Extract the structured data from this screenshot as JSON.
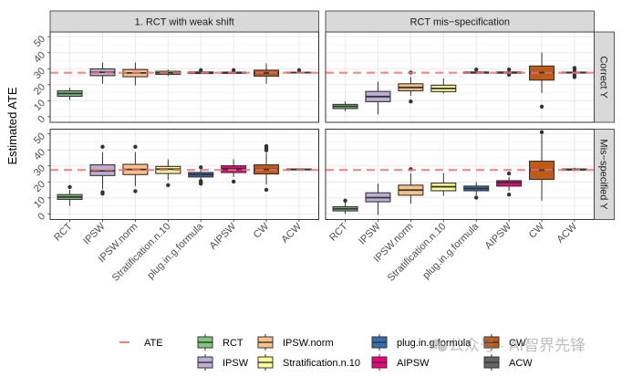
{
  "chart_data": {
    "type": "boxplot",
    "title": "",
    "xlabel": "",
    "ylabel": "Estimated ATE",
    "ylim": [
      -3.5,
      53
    ],
    "yticks": [
      0,
      10,
      20,
      30,
      40,
      50
    ],
    "ytick_labels": [
      "0",
      "10",
      "20",
      "30",
      "40",
      "50"
    ],
    "grid": true,
    "categories": [
      "RCT",
      "IPSW",
      "IPSW.norm",
      "Stratification.n.10",
      "plug.in.g.formula",
      "AIPSW",
      "CW",
      "ACW"
    ],
    "facet_columns": [
      "1. RCT with weak shift",
      "RCT mis−specification"
    ],
    "facet_rows": [
      "Correct Y",
      "Mis−specified Y"
    ],
    "reference_line": {
      "name": "ATE",
      "value": 27.5,
      "color": "#F07470",
      "style": "dashed"
    },
    "colors": {
      "RCT": "#7FC97F",
      "IPSW": "#BEAED4",
      "IPSW.norm": "#FDC086",
      "Stratification.n.10": "#FFFF99",
      "plug.in.g.formula": "#386CB0",
      "AIPSW": "#F0027F",
      "CW": "#BF5B17",
      "ACW": "#666666"
    },
    "legend": {
      "position": "bottom",
      "line_item": {
        "label": "ATE"
      },
      "items": [
        "RCT",
        "IPSW",
        "IPSW.norm",
        "Stratification.n.10",
        "plug.in.g.formula",
        "AIPSW",
        "CW",
        "ACW"
      ]
    },
    "panels": [
      {
        "row": "Correct Y",
        "column": "1. RCT with weak shift",
        "boxes": [
          {
            "method": "RCT",
            "lower": 10.5,
            "q1": 12.8,
            "median": 14.5,
            "q3": 16.2,
            "upper": 18.1,
            "outliers": []
          },
          {
            "method": "IPSW",
            "lower": 20.6,
            "q1": 25.7,
            "median": 27.8,
            "q3": 29.9,
            "upper": 33.9,
            "outliers": []
          },
          {
            "method": "IPSW.norm",
            "lower": 19.7,
            "q1": 25.0,
            "median": 27.4,
            "q3": 29.5,
            "upper": 33.9,
            "outliers": []
          },
          {
            "method": "Stratification.n.10",
            "lower": 25.4,
            "q1": 26.5,
            "median": 27.4,
            "q3": 28.4,
            "upper": 29.5,
            "outliers": []
          },
          {
            "method": "plug.in.g.formula",
            "lower": 26.9,
            "q1": 27.0,
            "median": 27.5,
            "q3": 28.0,
            "upper": 28.2,
            "outliers": [
              29.1
            ]
          },
          {
            "method": "AIPSW",
            "lower": 26.9,
            "q1": 27.1,
            "median": 27.5,
            "q3": 27.9,
            "upper": 28.2,
            "outliers": [
              29.1
            ]
          },
          {
            "method": "CW",
            "lower": 20.6,
            "q1": 25.4,
            "median": 27.3,
            "q3": 29.1,
            "upper": 33.4,
            "outliers": []
          },
          {
            "method": "ACW",
            "lower": 27.2,
            "q1": 27.4,
            "median": 27.6,
            "q3": 27.8,
            "upper": 28.0,
            "outliers": [
              29.1
            ]
          }
        ]
      },
      {
        "row": "Correct Y",
        "column": "RCT mis−specification",
        "boxes": [
          {
            "method": "RCT",
            "lower": 3.4,
            "q1": 5.1,
            "median": 6.5,
            "q3": 7.7,
            "upper": 9.5,
            "outliers": []
          },
          {
            "method": "IPSW",
            "lower": 1.5,
            "q1": 9.4,
            "median": 12.6,
            "q3": 15.8,
            "upper": 21.9,
            "outliers": []
          },
          {
            "method": "IPSW.norm",
            "lower": 13.0,
            "q1": 16.2,
            "median": 18.3,
            "q3": 20.6,
            "upper": 24.8,
            "outliers": [
              27.6,
              9.5
            ]
          },
          {
            "method": "Stratification.n.10",
            "lower": 14.5,
            "q1": 15.7,
            "median": 17.7,
            "q3": 19.7,
            "upper": 23.8,
            "outliers": []
          },
          {
            "method": "plug.in.g.formula",
            "lower": 27.0,
            "q1": 27.2,
            "median": 27.6,
            "q3": 28.0,
            "upper": 28.3,
            "outliers": [
              29.5
            ]
          },
          {
            "method": "AIPSW",
            "lower": 27.0,
            "q1": 27.2,
            "median": 27.6,
            "q3": 28.0,
            "upper": 28.3,
            "outliers": [
              29.5,
              26.3
            ]
          },
          {
            "method": "CW",
            "lower": 14.9,
            "q1": 22.9,
            "median": 27.6,
            "q3": 31.7,
            "upper": 40.2,
            "outliers": [
              6.3
            ]
          },
          {
            "method": "ACW",
            "lower": 26.8,
            "q1": 27.3,
            "median": 27.6,
            "q3": 27.9,
            "upper": 28.4,
            "outliers": [
              30.5,
              29.0,
              26.0,
              24.8
            ]
          }
        ]
      },
      {
        "row": "Mis−specified Y",
        "column": "1. RCT with weak shift",
        "boxes": [
          {
            "method": "RCT",
            "lower": 5.1,
            "q1": 9.1,
            "median": 10.6,
            "q3": 12.1,
            "upper": 15.1,
            "outliers": [
              16.8
            ]
          },
          {
            "method": "IPSW",
            "lower": 15.5,
            "q1": 24.0,
            "median": 26.9,
            "q3": 30.7,
            "upper": 38.6,
            "outliers": [
              42.0,
              13.6,
              12.7
            ]
          },
          {
            "method": "IPSW.norm",
            "lower": 17.4,
            "q1": 24.6,
            "median": 27.8,
            "q3": 31.0,
            "upper": 38.6,
            "outliers": [
              42.0,
              14.2
            ]
          },
          {
            "method": "Stratification.n.10",
            "lower": 21.2,
            "q1": 25.3,
            "median": 28.0,
            "q3": 29.7,
            "upper": 34.1,
            "outliers": [
              18.0
            ]
          },
          {
            "method": "plug.in.g.formula",
            "lower": 21.5,
            "q1": 23.1,
            "median": 24.6,
            "q3": 25.9,
            "upper": 28.0,
            "outliers": [
              29.1,
              20.6,
              19.5,
              18.9
            ]
          },
          {
            "method": "AIPSW",
            "lower": 23.1,
            "q1": 25.9,
            "median": 28.2,
            "q3": 30.1,
            "upper": 34.1,
            "outliers": [
              20.2
            ]
          },
          {
            "method": "CW",
            "lower": 18.4,
            "q1": 25.0,
            "median": 27.8,
            "q3": 30.7,
            "upper": 38.2,
            "outliers": [
              42.4,
              41.1,
              39.8,
              15.1
            ]
          },
          {
            "method": "ACW",
            "lower": 27.2,
            "q1": 27.5,
            "median": 27.8,
            "q3": 28.1,
            "upper": 28.4,
            "outliers": []
          }
        ]
      },
      {
        "row": "Mis−specified Y",
        "column": "RCT mis−specification",
        "boxes": [
          {
            "method": "RCT",
            "lower": 0.0,
            "q1": 1.9,
            "median": 3.2,
            "q3": 4.5,
            "upper": 7.0,
            "outliers": [
              8.3
            ]
          },
          {
            "method": "IPSW",
            "lower": -0.5,
            "q1": 7.6,
            "median": 10.2,
            "q3": 13.2,
            "upper": 18.9,
            "outliers": []
          },
          {
            "method": "IPSW.norm",
            "lower": 6.4,
            "q1": 11.7,
            "median": 14.9,
            "q3": 18.0,
            "upper": 25.3,
            "outliers": [
              28.0
            ]
          },
          {
            "method": "Stratification.n.10",
            "lower": 11.4,
            "q1": 14.5,
            "median": 17.0,
            "q3": 19.3,
            "upper": 25.5,
            "outliers": []
          },
          {
            "method": "plug.in.g.formula",
            "lower": 11.7,
            "q1": 14.5,
            "median": 15.9,
            "q3": 17.4,
            "upper": 19.9,
            "outliers": [
              10.2
            ]
          },
          {
            "method": "AIPSW",
            "lower": 14.5,
            "q1": 17.4,
            "median": 19.7,
            "q3": 20.8,
            "upper": 23.1,
            "outliers": [
              25.3,
              12.1
            ]
          },
          {
            "method": "CW",
            "lower": 8.3,
            "q1": 21.6,
            "median": 27.4,
            "q3": 33.0,
            "upper": 49.6,
            "outliers": [
              51.1
            ]
          },
          {
            "method": "ACW",
            "lower": 26.8,
            "q1": 27.4,
            "median": 27.8,
            "q3": 28.1,
            "upper": 28.9,
            "outliers": []
          }
        ]
      }
    ]
  },
  "watermark": {
    "icon": "wechat-icon",
    "text": "公众号 · AI智界先锋"
  }
}
